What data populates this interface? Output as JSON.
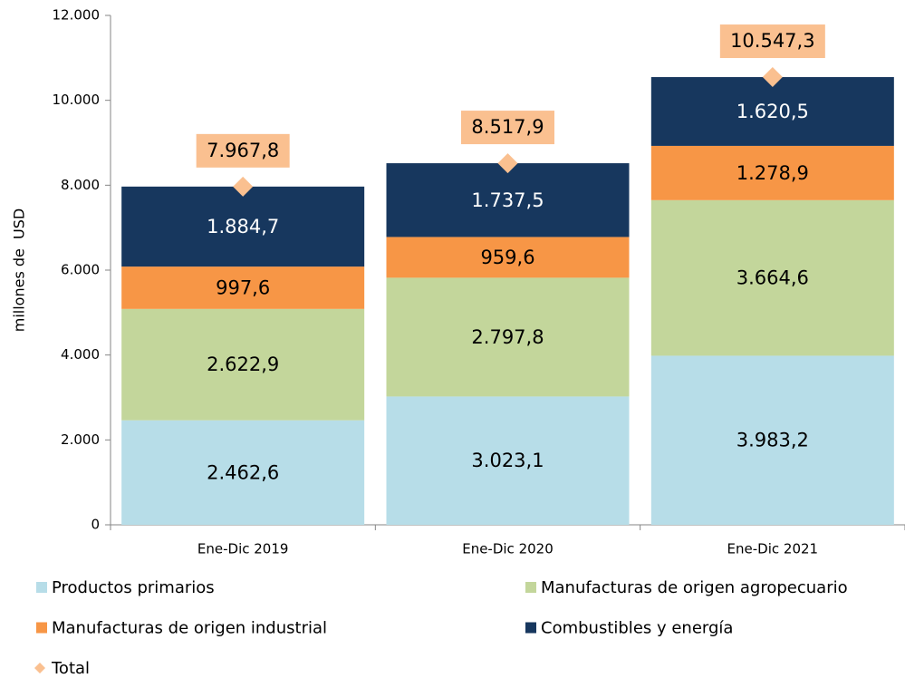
{
  "chart_data": {
    "type": "bar",
    "stacked": true,
    "legend": "bottom",
    "y_label": "millones de  USD",
    "categories": [
      "Ene-Dic 2019",
      "Ene-Dic 2020",
      "Ene-Dic 2021"
    ],
    "series": [
      {
        "name": "Productos primarios",
        "color": "#b7dde8",
        "values": [
          2462.6,
          3023.1,
          3983.2
        ],
        "value_labels": [
          "2.462,6",
          "3.023,1",
          "3.983,2"
        ]
      },
      {
        "name": "Manufacturas de origen agropecuario",
        "color": "#c3d69b",
        "values": [
          2622.9,
          2797.8,
          3664.6
        ],
        "value_labels": [
          "2.622,9",
          "2.797,8",
          "3.664,6"
        ]
      },
      {
        "name": "Manufacturas de origen industrial",
        "color": "#f79646",
        "values": [
          997.6,
          959.6,
          1278.9
        ],
        "value_labels": [
          "997,6",
          "959,6",
          "1.278,9"
        ]
      },
      {
        "name": "Combustibles y energía",
        "color": "#17375e",
        "values": [
          1884.7,
          1737.5,
          1620.5
        ],
        "value_labels": [
          "1.884,7",
          "1.737,5",
          "1.620,5"
        ]
      },
      {
        "name": "Total",
        "color": "#fac090",
        "marker": "diamond",
        "values": [
          7967.8,
          8517.9,
          10547.3
        ],
        "value_labels": [
          "7.967,8",
          "8.517,9",
          "10.547,3"
        ]
      }
    ],
    "ylim": [
      0,
      12000
    ],
    "yticks": [
      0,
      {
        "value": 2000,
        "label": "2.000"
      },
      {
        "value": 4000,
        "label": "4.000"
      },
      {
        "value": 6000,
        "label": "6.000"
      },
      {
        "value": 8000,
        "label": "8.000"
      },
      {
        "value": 10000,
        "label": "10.000"
      },
      {
        "value": 12000,
        "label": "12.000"
      }
    ]
  }
}
